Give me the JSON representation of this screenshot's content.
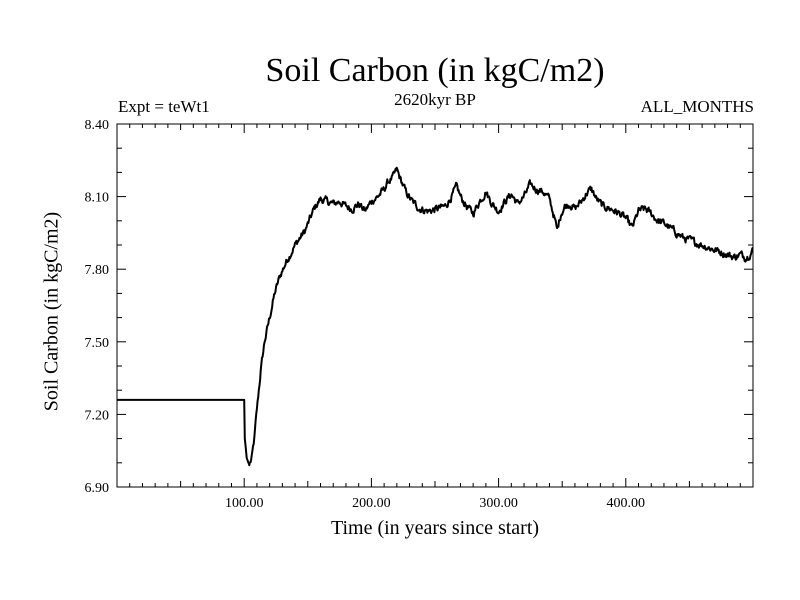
{
  "chart_data": {
    "type": "line",
    "title": "Soil Carbon (in kgC/m2)",
    "subtitle": "2620kyr BP",
    "experiment_label": "Expt = teWt1",
    "period_label": "ALL_MONTHS",
    "xlabel": "Time (in years since start)",
    "ylabel": "Soil Carbon (in kgC/m2)",
    "xlim": [
      0,
      500
    ],
    "ylim": [
      6.9,
      8.4
    ],
    "x_ticks": [
      100,
      200,
      300,
      400
    ],
    "x_tick_labels": [
      "100.00",
      "200.00",
      "300.00",
      "400.00"
    ],
    "y_ticks": [
      6.9,
      7.2,
      7.5,
      7.8,
      8.1,
      8.4
    ],
    "y_tick_labels": [
      "6.90",
      "7.20",
      "7.50",
      "7.80",
      "8.10",
      "8.40"
    ],
    "grid": false,
    "series": [
      {
        "name": "Soil Carbon",
        "x": [
          0,
          100,
          100.5,
          102,
          104,
          106,
          108,
          110,
          113,
          116,
          120,
          124,
          128,
          133,
          140,
          148,
          155,
          160,
          165,
          170,
          175,
          180,
          185,
          190,
          195,
          200,
          205,
          210,
          213,
          217,
          220,
          223,
          227,
          232,
          238,
          245,
          252,
          258,
          263,
          267,
          271,
          275,
          280,
          285,
          290,
          295,
          300,
          305,
          310,
          315,
          320,
          325,
          330,
          335,
          340,
          344,
          346,
          349,
          352,
          356,
          360,
          365,
          370,
          373,
          377,
          382,
          388,
          395,
          400,
          405,
          410,
          415,
          420,
          425,
          430,
          435,
          440,
          445,
          450,
          455,
          460,
          465,
          470,
          475,
          480,
          485,
          490,
          495,
          500
        ],
        "values": [
          7.26,
          7.26,
          7.1,
          7.02,
          6.99,
          7.02,
          7.1,
          7.22,
          7.38,
          7.5,
          7.6,
          7.7,
          7.77,
          7.83,
          7.9,
          7.96,
          8.05,
          8.09,
          8.08,
          8.07,
          8.08,
          8.06,
          8.05,
          8.07,
          8.04,
          8.08,
          8.1,
          8.13,
          8.16,
          8.18,
          8.21,
          8.17,
          8.12,
          8.08,
          8.05,
          8.04,
          8.05,
          8.06,
          8.1,
          8.14,
          8.09,
          8.06,
          8.03,
          8.08,
          8.12,
          8.07,
          8.04,
          8.08,
          8.11,
          8.07,
          8.1,
          8.15,
          8.13,
          8.12,
          8.09,
          8.01,
          7.96,
          8.03,
          8.06,
          8.07,
          8.05,
          8.08,
          8.12,
          8.13,
          8.09,
          8.06,
          8.05,
          8.03,
          8.01,
          7.97,
          8.04,
          8.05,
          8.03,
          8.0,
          7.99,
          7.97,
          7.95,
          7.93,
          7.92,
          7.91,
          7.9,
          7.89,
          7.88,
          7.87,
          7.86,
          7.85,
          7.86,
          7.85,
          7.88
        ]
      }
    ]
  }
}
